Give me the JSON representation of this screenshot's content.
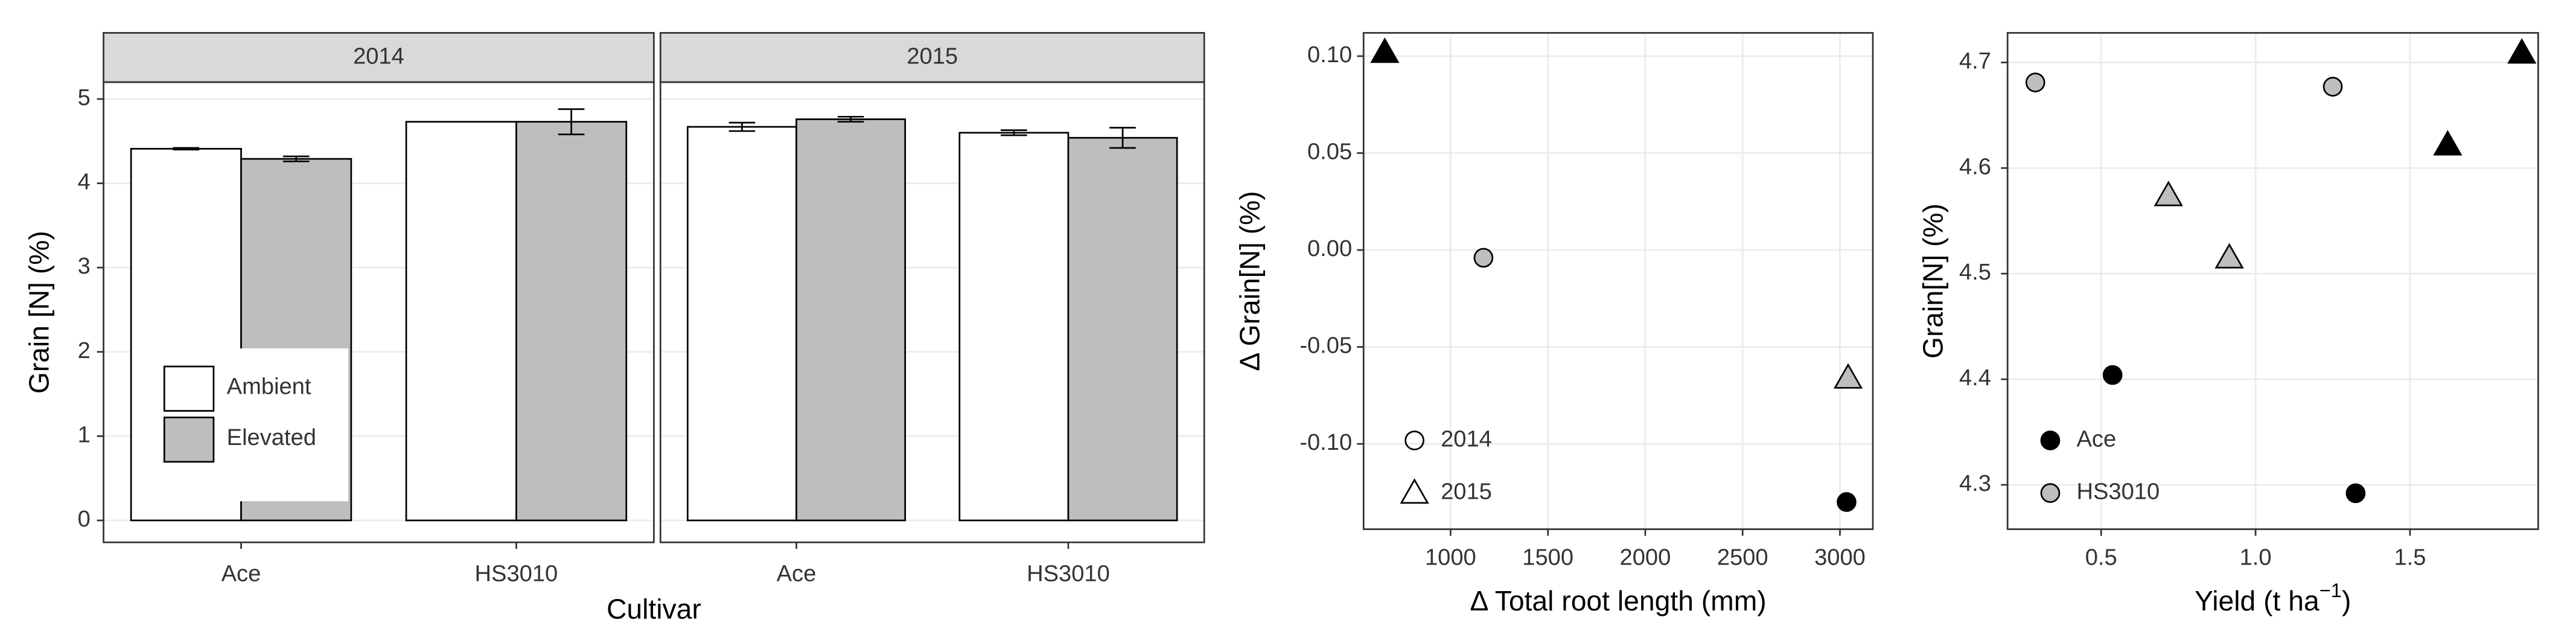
{
  "chart_data": [
    {
      "type": "faceted-bar",
      "ylabel": "Grain [N] (%)",
      "xlabel": "Cultivar",
      "categories": [
        "Ace",
        "HS3010"
      ],
      "series": [
        {
          "name": "Ambient",
          "color": "#ffffff"
        },
        {
          "name": "Elevated",
          "color": "#bebebe"
        }
      ],
      "facets": [
        {
          "title": "2014",
          "values": [
            [
              4.41,
              4.73
            ],
            [
              4.29,
              4.73
            ]
          ],
          "errors": [
            [
              0.01,
              null
            ],
            [
              0.03,
              0.15
            ]
          ]
        },
        {
          "title": "2015",
          "values": [
            [
              4.67,
              4.6
            ],
            [
              4.76,
              4.54
            ]
          ],
          "errors": [
            [
              0.05,
              0.03
            ],
            [
              0.03,
              0.12
            ]
          ]
        }
      ],
      "ylim": [
        -0.26,
        5.2
      ],
      "yticks": [
        0,
        1,
        2,
        3,
        4,
        5
      ],
      "grid": true,
      "legend": "bottom-left"
    },
    {
      "type": "scatter",
      "xlabel": "Δ Total root length (mm)",
      "ylabel": "Δ Grain[N] (%)",
      "series": [
        {
          "name": "2014",
          "marker": "circle",
          "x": [
            1169,
            3034
          ],
          "values": [
            -0.004,
            -0.13
          ],
          "colors": [
            "#bebebe",
            "#000000"
          ]
        },
        {
          "name": "2015",
          "marker": "triangle",
          "x": [
            662,
            3042
          ],
          "values": [
            0.102,
            -0.066
          ],
          "colors": [
            "#000000",
            "#bebebe"
          ]
        }
      ],
      "xlim": [
        553,
        3169
      ],
      "xticks": [
        1000,
        1500,
        2000,
        2500,
        3000
      ],
      "ylim": [
        -0.144,
        0.112
      ],
      "yticks": [
        {
          "value": -0.1,
          "label": "-0.10"
        },
        {
          "value": -0.05,
          "label": "-0.05"
        },
        {
          "value": 0,
          "label": "0.00"
        },
        {
          "value": 0.05,
          "label": "0.05"
        },
        {
          "value": 0.1,
          "label": "0.10"
        }
      ],
      "grid": true,
      "legend": "bottom-left"
    },
    {
      "type": "scatter",
      "xlabel": "Yield (t ha",
      "xlabel_sup": "−1",
      "xlabel_end": ")",
      "ylabel": "Grain[N] (%)",
      "series": [
        {
          "name": "Ace",
          "color": "#000000",
          "x": [
            0.537,
            1.324,
            1.622,
            1.862
          ],
          "values": [
            4.404,
            4.292,
            4.622,
            4.709
          ],
          "markers": [
            "circle",
            "circle",
            "triangle",
            "triangle"
          ]
        },
        {
          "name": "HS3010",
          "color": "#bebebe",
          "x": [
            0.287,
            1.25,
            0.718,
            0.915
          ],
          "values": [
            4.681,
            4.677,
            4.574,
            4.515
          ],
          "markers": [
            "circle",
            "circle",
            "triangle",
            "triangle"
          ]
        }
      ],
      "xlim": [
        0.197,
        1.915
      ],
      "xticks": [
        0.5,
        {
          "value": 1,
          "label": "1.0"
        },
        1.5
      ],
      "ylim": [
        4.258,
        4.728
      ],
      "yticks": [
        4.3,
        4.4,
        4.5,
        4.6,
        4.7
      ],
      "grid": true,
      "legend": "bottom-left"
    }
  ]
}
